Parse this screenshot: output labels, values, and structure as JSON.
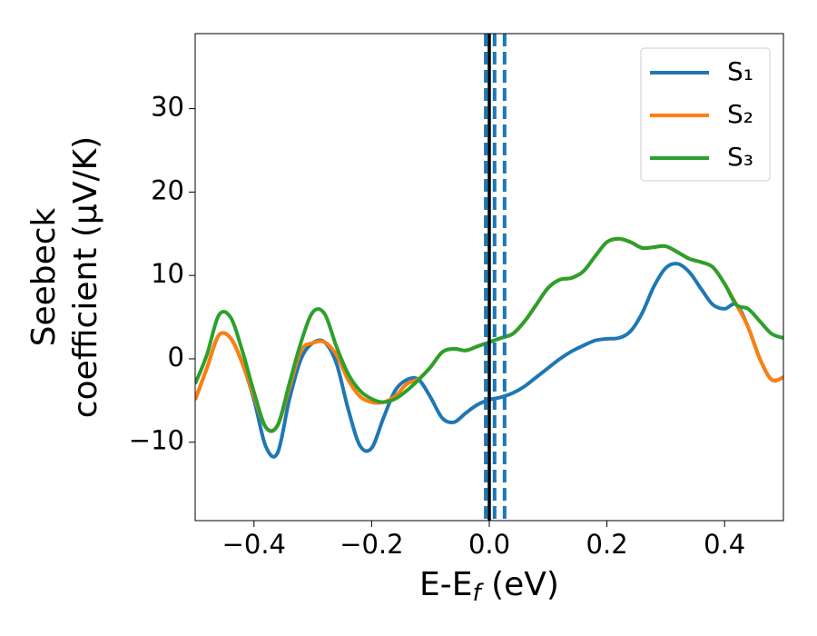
{
  "chart_data": {
    "type": "line",
    "xlabel": [
      "E-E",
      "f",
      " (eV)"
    ],
    "ylabel": [
      "Seebeck",
      "coefficient  (μV/K)"
    ],
    "x": [
      -0.5,
      -0.48,
      -0.46,
      -0.44,
      -0.42,
      -0.4,
      -0.38,
      -0.36,
      -0.34,
      -0.32,
      -0.3,
      -0.28,
      -0.26,
      -0.24,
      -0.22,
      -0.2,
      -0.18,
      -0.16,
      -0.14,
      -0.12,
      -0.1,
      -0.08,
      -0.06,
      -0.04,
      -0.02,
      0,
      0.02,
      0.04,
      0.06,
      0.08,
      0.1,
      0.12,
      0.14,
      0.16,
      0.18,
      0.2,
      0.22,
      0.24,
      0.26,
      0.28,
      0.3,
      0.32,
      0.34,
      0.36,
      0.38,
      0.4,
      0.42,
      0.44,
      0.46,
      0.48,
      0.5
    ],
    "series": [
      {
        "name": "S₁",
        "color": "#1f77b4",
        "values": [
          -4.9,
          -1.1,
          2.8,
          2.5,
          -0.5,
          -4.9,
          -10.5,
          -11.3,
          -4.9,
          0,
          1.9,
          2.0,
          -0.5,
          -6,
          -10.4,
          -10.7,
          -7.1,
          -3.8,
          -2.5,
          -2.5,
          -4.6,
          -7.1,
          -7.6,
          -6.5,
          -5.5,
          -4.9,
          -4.6,
          -4.1,
          -3.3,
          -2.2,
          -1.1,
          0,
          0.9,
          1.6,
          2.2,
          2.4,
          2.5,
          3.3,
          5.5,
          8.7,
          10.9,
          11.4,
          10.4,
          8.4,
          6.5,
          6.0,
          6.5,
          3.8,
          0,
          -2.5,
          -2.2
        ]
      },
      {
        "name": "S₂",
        "color": "#ff7f0e",
        "values": [
          -4.9,
          -1.1,
          2.8,
          2.5,
          -0.5,
          -4.5,
          -8.2,
          -8.0,
          -3.5,
          1.0,
          1.9,
          2.0,
          0.5,
          -2.5,
          -4.5,
          -5.2,
          -5.2,
          -4.5,
          -3.0,
          -2.4,
          -1,
          0.8,
          1.2,
          1.0,
          1.5,
          2.0,
          2.5,
          3.0,
          4.5,
          6.5,
          8.5,
          9.5,
          9.7,
          10.5,
          12.3,
          14,
          14.4,
          14,
          13.3,
          13.4,
          13.5,
          12.8,
          12,
          11.6,
          11,
          9,
          6.5,
          3.8,
          0,
          -2.5,
          -2.2
        ]
      },
      {
        "name": "S₃",
        "color": "#2ca02c",
        "values": [
          -3,
          0.5,
          5.2,
          5.0,
          1.0,
          -4,
          -8.2,
          -8.0,
          -3,
          2.0,
          5.6,
          5.4,
          1.5,
          -1.8,
          -3.8,
          -4.8,
          -5.2,
          -4.8,
          -3.8,
          -2.5,
          -1,
          0.8,
          1.2,
          1.0,
          1.5,
          2.0,
          2.5,
          3.0,
          4.5,
          6.5,
          8.5,
          9.5,
          9.7,
          10.5,
          12.3,
          14,
          14.4,
          14,
          13.3,
          13.4,
          13.5,
          12.8,
          12,
          11.6,
          11,
          9,
          6.5,
          6,
          4.5,
          3,
          2.5
        ]
      }
    ],
    "vlines": [
      {
        "x": -0.006,
        "color": "#1f77b4",
        "dashed": true
      },
      {
        "x": 0.009,
        "color": "#1f77b4",
        "dashed": true
      },
      {
        "x": 0.026,
        "color": "#1f77b4",
        "dashed": true
      },
      {
        "x": 0,
        "color": "#000000",
        "dashed": false
      }
    ],
    "xlim": [
      -0.5,
      0.5
    ],
    "ylim": [
      -19.4,
      39
    ],
    "xticks": [
      {
        "value": -0.4,
        "label": "−0.4"
      },
      {
        "value": -0.2,
        "label": "−0.2"
      },
      {
        "value": 0,
        "label": "0.0"
      },
      {
        "value": 0.2,
        "label": "0.2"
      },
      {
        "value": 0.4,
        "label": "0.4"
      }
    ],
    "yticks": [
      {
        "value": -10,
        "label": "−10"
      },
      0,
      10,
      20,
      30
    ],
    "legend": "upper right"
  }
}
